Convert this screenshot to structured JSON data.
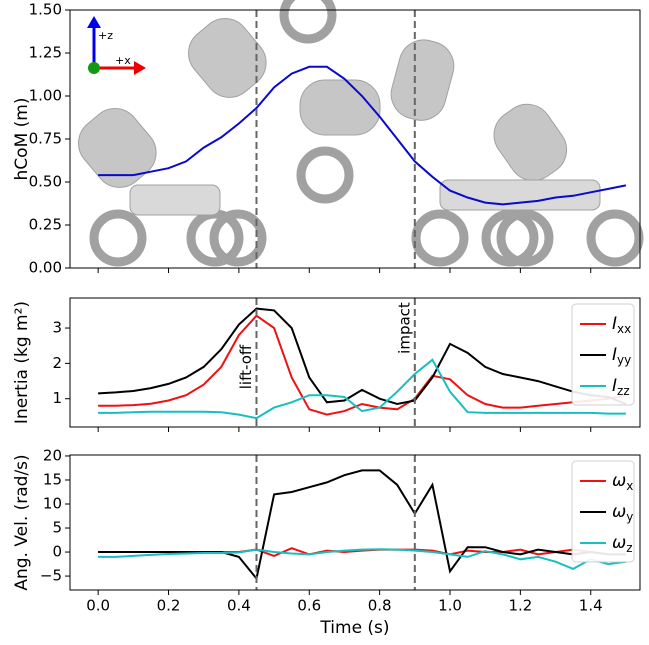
{
  "chart_data": [
    {
      "type": "line",
      "ylabel": "hCoM (m)",
      "frame_labels": [
        "+z",
        "+x"
      ],
      "x": [
        0,
        0.05,
        0.1,
        0.15,
        0.2,
        0.25,
        0.3,
        0.35,
        0.4,
        0.45,
        0.5,
        0.55,
        0.6,
        0.65,
        0.7,
        0.75,
        0.8,
        0.85,
        0.9,
        0.95,
        1.0,
        1.05,
        1.1,
        1.15,
        1.2,
        1.25,
        1.3,
        1.35,
        1.4,
        1.45,
        1.5
      ],
      "series": [
        {
          "color": "#0a0acc",
          "values": [
            0.54,
            0.54,
            0.54,
            0.56,
            0.58,
            0.62,
            0.7,
            0.76,
            0.84,
            0.93,
            1.05,
            1.13,
            1.17,
            1.17,
            1.1,
            1.0,
            0.88,
            0.75,
            0.62,
            0.53,
            0.45,
            0.41,
            0.38,
            0.37,
            0.38,
            0.39,
            0.41,
            0.42,
            0.44,
            0.46,
            0.48
          ]
        }
      ],
      "xlim": [
        -0.08,
        1.54
      ],
      "ylim": [
        0,
        1.5
      ],
      "xticks": [
        0,
        0.2,
        0.4,
        0.6,
        0.8,
        1,
        1.2,
        1.4
      ],
      "yticks": [
        {
          "value": 0,
          "label": "0.00"
        },
        0.25,
        {
          "value": 0.5,
          "label": "0.50"
        },
        0.75,
        {
          "value": 1,
          "label": "1.00"
        },
        1.25,
        {
          "value": 1.5,
          "label": "1.50"
        }
      ],
      "vlines": [
        0.45,
        0.9
      ]
    },
    {
      "type": "line",
      "ylabel": "Inertia (kg m²)",
      "legend": "upper right",
      "x": [
        0,
        0.05,
        0.1,
        0.15,
        0.2,
        0.25,
        0.3,
        0.35,
        0.4,
        0.45,
        0.5,
        0.55,
        0.6,
        0.65,
        0.7,
        0.75,
        0.8,
        0.85,
        0.9,
        0.95,
        1.0,
        1.05,
        1.1,
        1.15,
        1.2,
        1.25,
        1.3,
        1.35,
        1.4,
        1.45,
        1.5
      ],
      "series": [
        {
          "name": "Ixx",
          "color": "#ee1111",
          "values": [
            0.8,
            0.8,
            0.82,
            0.86,
            0.95,
            1.1,
            1.4,
            1.9,
            2.8,
            3.35,
            3.0,
            1.6,
            0.7,
            0.55,
            0.65,
            0.85,
            0.75,
            0.7,
            1.0,
            1.65,
            1.55,
            1.1,
            0.85,
            0.75,
            0.75,
            0.8,
            0.85,
            0.9,
            0.95,
            1.0,
            1.1
          ]
        },
        {
          "name": "Iyy",
          "color": "#000000",
          "values": [
            1.15,
            1.18,
            1.22,
            1.3,
            1.42,
            1.6,
            1.9,
            2.4,
            3.1,
            3.55,
            3.5,
            3.0,
            1.6,
            0.9,
            0.95,
            1.25,
            1.0,
            0.85,
            0.95,
            1.6,
            2.55,
            2.3,
            1.9,
            1.7,
            1.6,
            1.5,
            1.35,
            1.2,
            1.1,
            1.05,
            0.85
          ]
        },
        {
          "name": "Izz",
          "color": "#17bfbf",
          "values": [
            0.6,
            0.6,
            0.62,
            0.63,
            0.63,
            0.63,
            0.63,
            0.62,
            0.55,
            0.45,
            0.75,
            0.9,
            1.1,
            1.1,
            1.05,
            0.65,
            0.75,
            1.2,
            1.7,
            2.1,
            1.2,
            0.62,
            0.6,
            0.6,
            0.6,
            0.6,
            0.6,
            0.6,
            0.6,
            0.58,
            0.58
          ]
        }
      ],
      "xlim": [
        -0.08,
        1.54
      ],
      "ylim": [
        0.2,
        3.85
      ],
      "xticks": [
        0,
        0.2,
        0.4,
        0.6,
        0.8,
        1,
        1.2,
        1.4
      ],
      "yticks": [
        1,
        2,
        3
      ],
      "vlines": [
        0.45,
        0.9
      ],
      "annotations": [
        "lift-off",
        "impact"
      ]
    },
    {
      "type": "line",
      "ylabel": "Ang. Vel. (rad/s)",
      "xlabel": "Time (s)",
      "legend": "upper right",
      "x": [
        0,
        0.05,
        0.1,
        0.15,
        0.2,
        0.25,
        0.3,
        0.35,
        0.4,
        0.45,
        0.5,
        0.55,
        0.6,
        0.65,
        0.7,
        0.75,
        0.8,
        0.85,
        0.9,
        0.95,
        1.0,
        1.05,
        1.1,
        1.15,
        1.2,
        1.25,
        1.3,
        1.35,
        1.4,
        1.45,
        1.5
      ],
      "series": [
        {
          "name": "ωx",
          "color": "#ee1111",
          "values": [
            0,
            0,
            0,
            0,
            0,
            0,
            0,
            0,
            0,
            0.5,
            -0.8,
            0.8,
            -0.5,
            0.3,
            0,
            0.3,
            0.5,
            0.5,
            0.5,
            0.3,
            -0.5,
            0.3,
            0,
            0,
            0.5,
            -0.5,
            0,
            0.5,
            0,
            -0.5,
            -0.5
          ]
        },
        {
          "name": "ωy",
          "color": "#000000",
          "values": [
            0,
            0,
            0,
            0,
            0,
            0,
            0,
            0,
            -1,
            -5.5,
            12,
            12.5,
            13.5,
            14.5,
            16,
            17,
            17,
            14,
            8,
            14,
            -4,
            1,
            1,
            0,
            -0.5,
            0.5,
            0,
            -0.5,
            0,
            -0.5,
            -0.5
          ]
        },
        {
          "name": "ωz",
          "color": "#17bfbf",
          "values": [
            -1,
            -1,
            -0.8,
            -0.6,
            -0.4,
            -0.3,
            -0.2,
            -0.2,
            -0.1,
            0.5,
            0,
            -0.3,
            -0.5,
            0,
            0.3,
            0.5,
            0.6,
            0.5,
            0.3,
            0,
            -0.5,
            -1,
            0.2,
            -0.5,
            -1.5,
            -1,
            -2,
            -3.5,
            -1.5,
            -2.5,
            -2
          ]
        }
      ],
      "xlim": [
        -0.08,
        1.54
      ],
      "ylim": [
        -7.9,
        20.2
      ],
      "xticks": [
        {
          "value": 0,
          "label": "0.0"
        },
        0.2,
        0.4,
        0.6,
        0.8,
        {
          "value": 1,
          "label": "1.0"
        },
        1.2,
        1.4
      ],
      "yticks": [
        {
          "value": -5,
          "label": "−5"
        },
        0,
        5,
        10,
        15,
        20
      ],
      "vlines": [
        0.45,
        0.9
      ]
    }
  ]
}
